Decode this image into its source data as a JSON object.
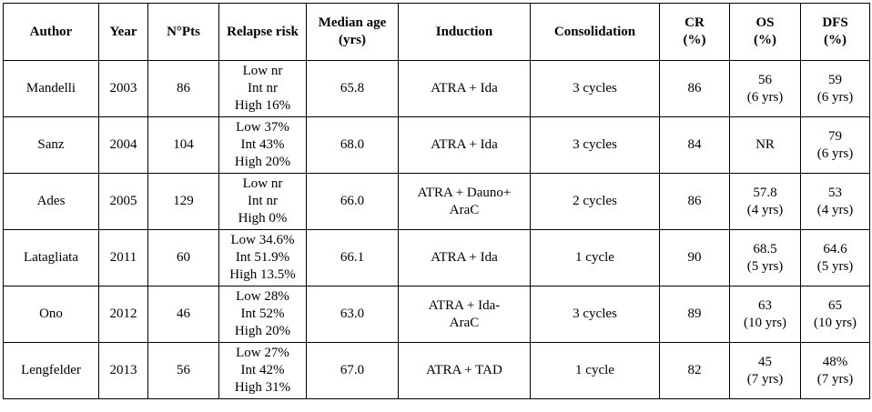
{
  "table": {
    "headers": [
      "Author",
      "Year",
      "N°Pts",
      "Relapse risk",
      "Median age\n(yrs)",
      "Induction",
      "Consolidation",
      "CR\n(%)",
      "OS\n(%)",
      "DFS\n(%)"
    ],
    "rows": [
      [
        "Mandelli",
        "2003",
        "86",
        "Low nr\nInt nr\nHigh 16%",
        "65.8",
        "ATRA + Ida",
        "3 cycles",
        "86",
        "56\n(6 yrs)",
        "59\n(6 yrs)"
      ],
      [
        "Sanz",
        "2004",
        "104",
        "Low 37%\nInt 43%\nHigh 20%",
        "68.0",
        "ATRA + Ida",
        "3 cycles",
        "84",
        "NR",
        "79\n(6 yrs)"
      ],
      [
        "Ades",
        "2005",
        "129",
        "Low nr\nInt nr\nHigh 0%",
        "66.0",
        "ATRA + Dauno+\nAraC",
        "2 cycles",
        "86",
        "57.8\n(4 yrs)",
        "53\n(4 yrs)"
      ],
      [
        "Latagliata",
        "2011",
        "60",
        "Low 34.6%\nInt 51.9%\nHigh 13.5%",
        "66.1",
        "ATRA + Ida",
        "1 cycle",
        "90",
        "68.5\n(5 yrs)",
        "64.6\n(5 yrs)"
      ],
      [
        "Ono",
        "2012",
        "46",
        "Low 28%\nInt 52%\nHigh 20%",
        "63.0",
        "ATRA + Ida-\nAraC",
        "3 cycles",
        "89",
        "63\n(10 yrs)",
        "65\n(10 yrs)"
      ],
      [
        "Lengfelder",
        "2013",
        "56",
        "Low 27%\nInt 42%\nHigh 31%",
        "67.0",
        "ATRA + TAD",
        "1 cycle",
        "82",
        "45\n(7 yrs)",
        "48%\n(7 yrs)"
      ]
    ]
  }
}
